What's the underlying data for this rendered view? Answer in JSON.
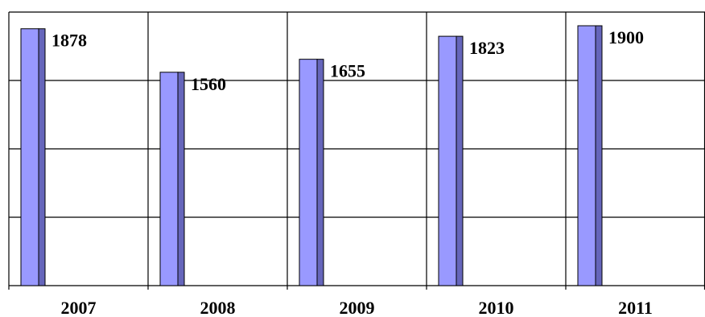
{
  "chart_data": {
    "type": "bar",
    "categories": [
      "2007",
      "2008",
      "2009",
      "2010",
      "2011"
    ],
    "values": [
      1878,
      1560,
      1655,
      1823,
      1900
    ],
    "data_labels": [
      "1878",
      "1560",
      "1655",
      "1823",
      "1900"
    ],
    "title": "",
    "xlabel": "",
    "ylabel": "",
    "ylim": [
      0,
      2000
    ],
    "grid": true,
    "colors": {
      "bar_face": "#9999ff",
      "bar_side": "#6666bb",
      "bar_edge": "#000000",
      "grid": "#000000"
    }
  }
}
